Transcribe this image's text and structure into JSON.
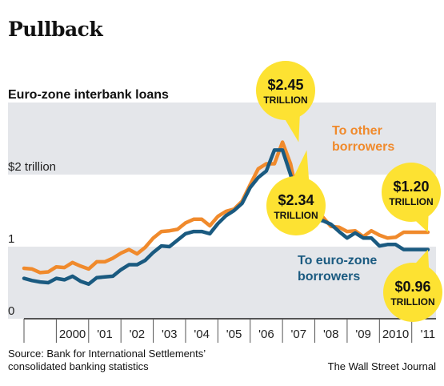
{
  "chart_data": {
    "type": "line",
    "title": "Pullback",
    "subtitle": "Euro-zone interbank loans",
    "y_tick_labels": [
      "0",
      "1",
      "$2 trillion"
    ],
    "ylim": [
      0,
      3.0
    ],
    "grid": "alternating shaded bands",
    "x_tick_labels": [
      "2000",
      "'01",
      "'02",
      "'03",
      "'04",
      "'05",
      "'06",
      "'07",
      "'08",
      "'09",
      "2010",
      "'11"
    ],
    "xlim": [
      1999.0,
      2011.75
    ],
    "series": [
      {
        "name": "To other borrowers",
        "color": "#f08a2c",
        "x": [
          1999.0,
          1999.25,
          1999.5,
          1999.75,
          2000.0,
          2000.25,
          2000.5,
          2000.75,
          2001.0,
          2001.25,
          2001.5,
          2001.75,
          2002.0,
          2002.25,
          2002.5,
          2002.75,
          2003.0,
          2003.25,
          2003.5,
          2003.75,
          2004.0,
          2004.25,
          2004.5,
          2004.75,
          2005.0,
          2005.25,
          2005.5,
          2005.75,
          2006.0,
          2006.25,
          2006.5,
          2006.75,
          2007.0,
          2007.25,
          2007.5,
          2007.75,
          2008.0,
          2008.25,
          2008.5,
          2008.75,
          2009.0,
          2009.25,
          2009.5,
          2009.75,
          2010.0,
          2010.25,
          2010.5,
          2010.75,
          2011.0,
          2011.25,
          2011.5
        ],
        "y": [
          0.7,
          0.69,
          0.64,
          0.65,
          0.72,
          0.71,
          0.78,
          0.73,
          0.69,
          0.79,
          0.79,
          0.84,
          0.91,
          0.96,
          0.9,
          0.99,
          1.12,
          1.21,
          1.22,
          1.24,
          1.33,
          1.38,
          1.38,
          1.29,
          1.42,
          1.49,
          1.52,
          1.63,
          1.86,
          2.08,
          2.15,
          2.15,
          2.45,
          2.15,
          1.62,
          1.44,
          1.42,
          1.41,
          1.28,
          1.27,
          1.21,
          1.22,
          1.14,
          1.22,
          1.16,
          1.12,
          1.13,
          1.2,
          1.2,
          1.2,
          1.2
        ]
      },
      {
        "name": "To euro-zone borrowers",
        "color": "#1a5a80",
        "x": [
          1999.0,
          1999.25,
          1999.5,
          1999.75,
          2000.0,
          2000.25,
          2000.5,
          2000.75,
          2001.0,
          2001.25,
          2001.5,
          2001.75,
          2002.0,
          2002.25,
          2002.5,
          2002.75,
          2003.0,
          2003.25,
          2003.5,
          2003.75,
          2004.0,
          2004.25,
          2004.5,
          2004.75,
          2005.0,
          2005.25,
          2005.5,
          2005.75,
          2006.0,
          2006.25,
          2006.5,
          2006.75,
          2007.0,
          2007.25,
          2007.5,
          2007.75,
          2008.0,
          2008.25,
          2008.5,
          2008.75,
          2009.0,
          2009.25,
          2009.5,
          2009.75,
          2010.0,
          2010.25,
          2010.5,
          2010.75,
          2011.0,
          2011.25,
          2011.5
        ],
        "y": [
          0.56,
          0.53,
          0.51,
          0.5,
          0.56,
          0.54,
          0.59,
          0.52,
          0.48,
          0.57,
          0.58,
          0.59,
          0.68,
          0.75,
          0.75,
          0.81,
          0.92,
          1.01,
          1.0,
          1.09,
          1.18,
          1.21,
          1.21,
          1.18,
          1.32,
          1.43,
          1.5,
          1.6,
          1.82,
          1.96,
          2.05,
          2.34,
          2.34,
          2.0,
          1.58,
          1.39,
          1.38,
          1.36,
          1.31,
          1.21,
          1.12,
          1.19,
          1.12,
          1.12,
          1.01,
          1.03,
          1.03,
          0.96,
          0.96,
          0.96,
          0.96
        ]
      }
    ],
    "annotations": [
      {
        "id": "peak_other",
        "value": "$2.45",
        "unit": "TRILLION",
        "x": 2007.5,
        "y": 2.45
      },
      {
        "id": "peak_ez",
        "value": "$2.34",
        "unit": "TRILLION",
        "x": 2007.75,
        "y": 2.34
      },
      {
        "id": "end_other",
        "value": "$1.20",
        "unit": "TRILLION",
        "x": 2011.5,
        "y": 1.2
      },
      {
        "id": "end_ez",
        "value": "$0.96",
        "unit": "TRILLION",
        "x": 2011.5,
        "y": 0.96
      }
    ],
    "series_labels": {
      "other": [
        "To other",
        "borrowers"
      ],
      "ez": [
        "To euro-zone",
        "borrowers"
      ]
    }
  },
  "source": [
    "Source: Bank for International Settlements’",
    "consolidated banking statistics"
  ],
  "credit": "The Wall Street Journal"
}
